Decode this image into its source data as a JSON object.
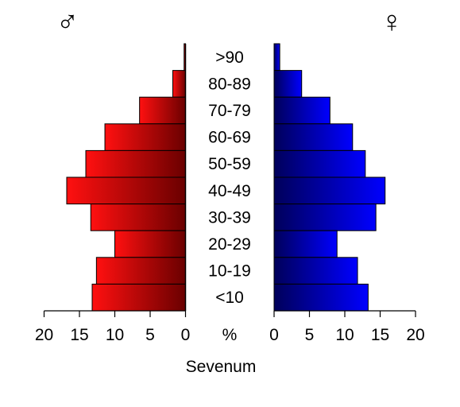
{
  "chart_data": {
    "type": "bar",
    "orientation": "horizontal-population-pyramid",
    "xlabel": "Sevenum",
    "unit_label": "%",
    "age_groups": [
      ">90",
      "80-89",
      "70-79",
      "60-69",
      "50-59",
      "40-49",
      "30-39",
      "20-29",
      "10-19",
      "<10"
    ],
    "series": [
      {
        "name": "♂",
        "side": "left",
        "color_light": "#ff1010",
        "color_dark": "#6a0000",
        "values": [
          0.2,
          1.8,
          6.5,
          11.4,
          14.1,
          16.8,
          13.4,
          10.0,
          12.6,
          13.2
        ]
      },
      {
        "name": "♀",
        "side": "right",
        "color_light": "#0000ff",
        "color_dark": "#00005a",
        "values": [
          0.8,
          3.9,
          7.9,
          11.1,
          12.9,
          15.7,
          14.4,
          8.9,
          11.8,
          13.3
        ]
      }
    ],
    "xlim": [
      0,
      20
    ],
    "ticks": [
      "0",
      "5",
      "10",
      "15",
      "20"
    ],
    "grid": false,
    "legend": "none"
  }
}
